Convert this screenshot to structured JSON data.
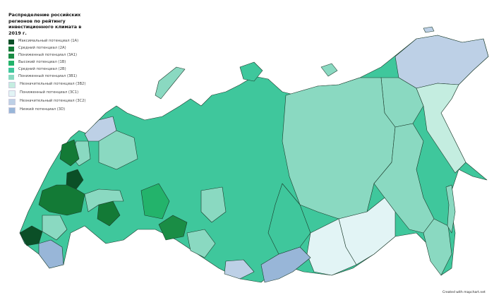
{
  "legend": {
    "title": "Распределение российских регионов по рейтингу инвестиционного климата в 2019 г.",
    "items": [
      {
        "label": "Максимальный потенциал (1А)",
        "color": "#0b4f27"
      },
      {
        "label": "Средний потенциал (2А)",
        "color": "#137a36"
      },
      {
        "label": "Пониженный потенциал (3А1)",
        "color": "#1a8d45"
      },
      {
        "label": "Высокий потенциал (1В)",
        "color": "#23b36b"
      },
      {
        "label": "Средний потенциал (2В)",
        "color": "#3fc79c"
      },
      {
        "label": "Пониженный потенциал (3В1)",
        "color": "#8ad9c1"
      },
      {
        "label": "Незначительный потенциал (3В2)",
        "color": "#c4ede0"
      },
      {
        "label": "Пониженный потенциал (3С1)",
        "color": "#e2f4f5"
      },
      {
        "label": "Незначительный потенциал (3С2)",
        "color": "#bdd0e6"
      },
      {
        "label": "Низкий потенциал (3D)",
        "color": "#98b6d8"
      }
    ]
  },
  "credit": "Created with mapchart.net"
}
